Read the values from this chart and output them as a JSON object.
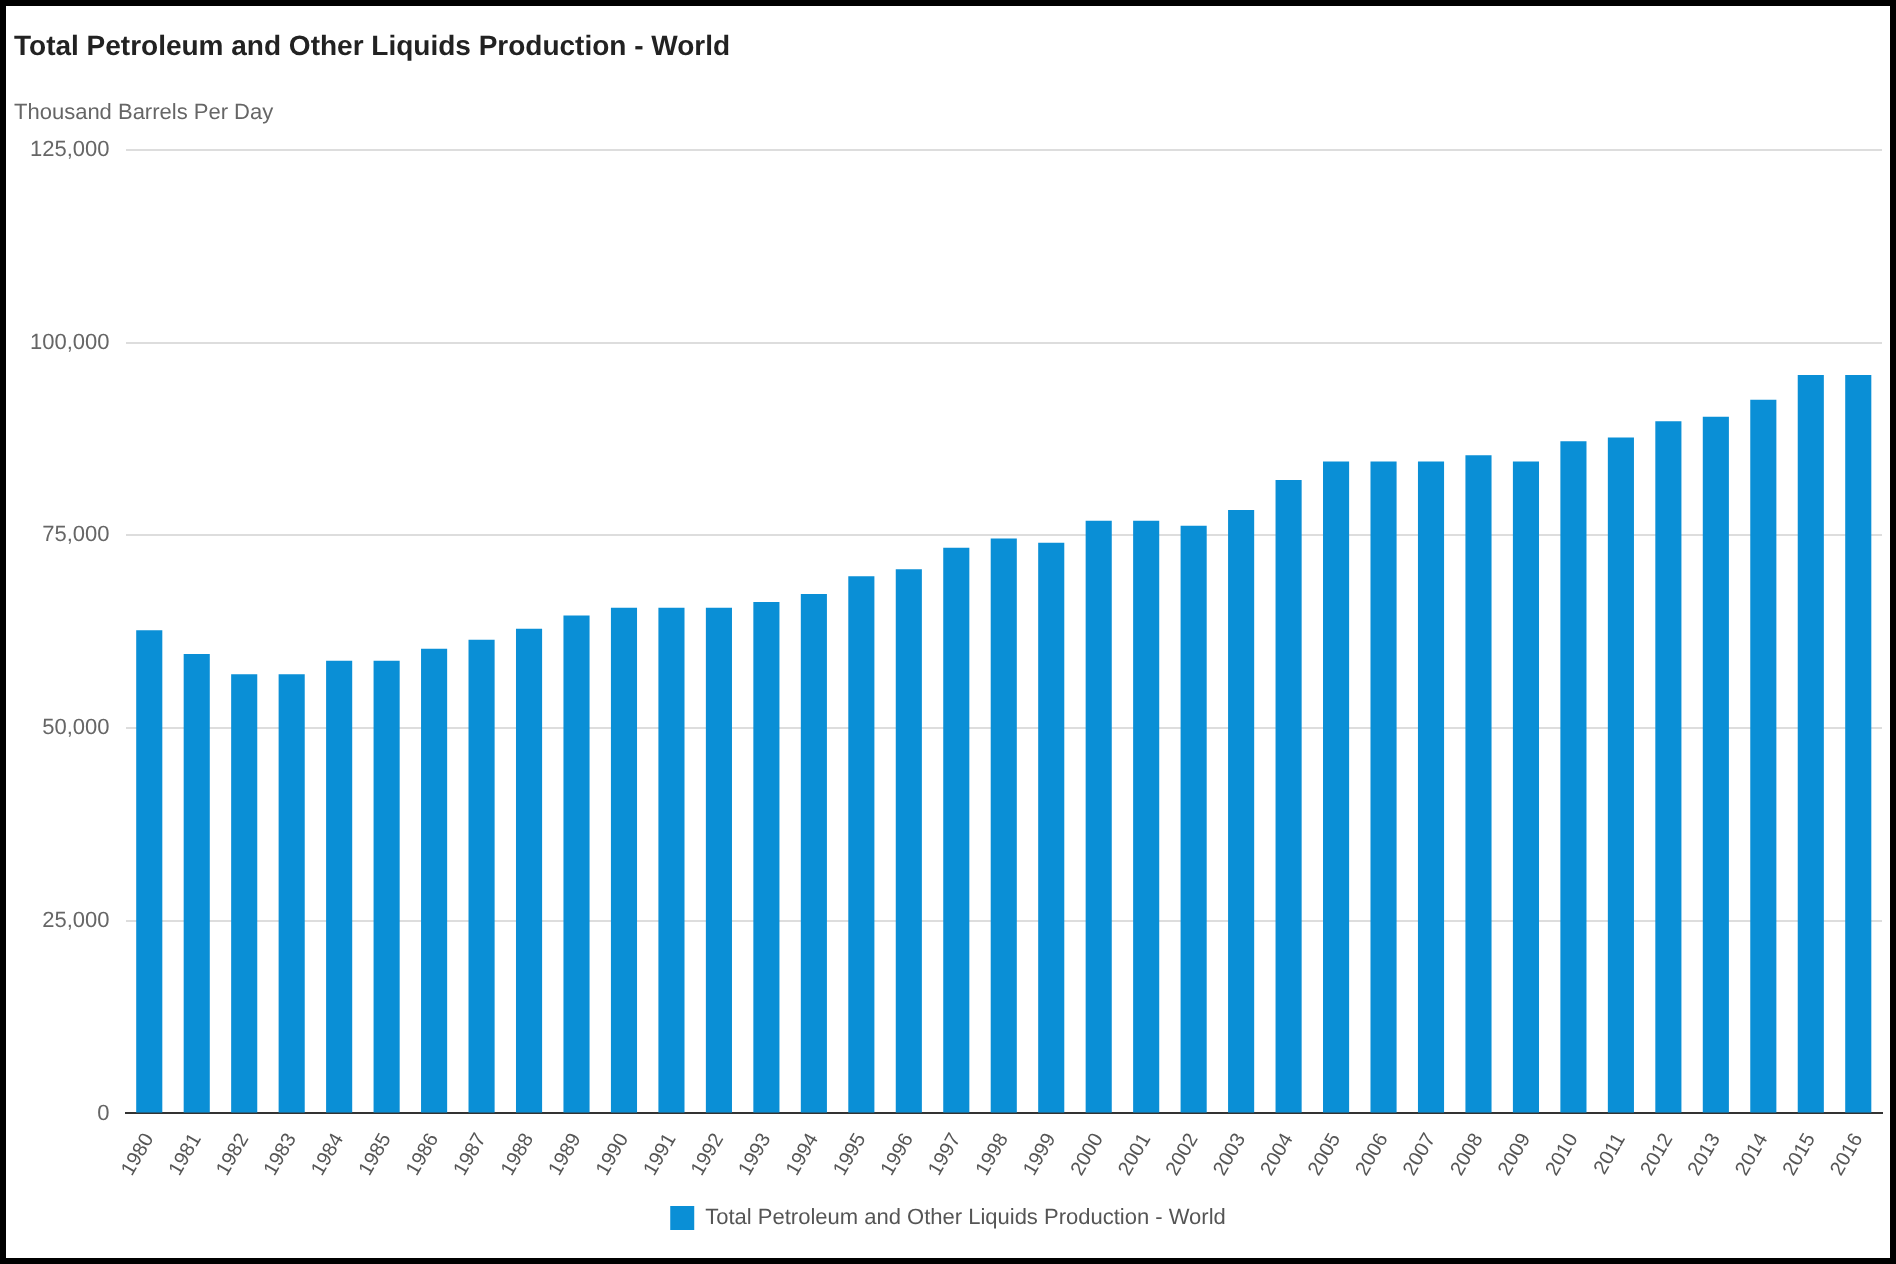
{
  "chart_data": {
    "type": "bar",
    "title": "Total Petroleum and Other Liquids Production - World",
    "ylabel": "Thousand Barrels Per Day",
    "categories": [
      "1980",
      "1981",
      "1982",
      "1983",
      "1984",
      "1985",
      "1986",
      "1987",
      "1988",
      "1989",
      "1990",
      "1991",
      "1992",
      "1993",
      "1994",
      "1995",
      "1996",
      "1997",
      "1998",
      "1999",
      "2000",
      "2001",
      "2002",
      "2003",
      "2004",
      "2005",
      "2006",
      "2007",
      "2008",
      "2009",
      "2010",
      "2011",
      "2012",
      "2013",
      "2014",
      "2015",
      "2016"
    ],
    "series": [
      {
        "name": "Total Petroleum and Other Liquids Production - World",
        "color": "#0a8fd6",
        "values": [
          62700,
          59600,
          57000,
          57000,
          58750,
          58750,
          60300,
          61450,
          62900,
          64600,
          65600,
          65600,
          65600,
          66350,
          67400,
          69700,
          70600,
          73400,
          74600,
          74050,
          76900,
          76900,
          76250,
          78300,
          82200,
          84600,
          84600,
          84600,
          85400,
          84600,
          87200,
          87700,
          89800,
          90400,
          92600,
          95800,
          95800
        ]
      }
    ],
    "ylim": [
      0,
      125000
    ],
    "yticks": [
      {
        "value": 0,
        "label": "0"
      },
      {
        "value": 25000,
        "label": "25,000"
      },
      {
        "value": 50000,
        "label": "50,000"
      },
      {
        "value": 75000,
        "label": "75,000"
      },
      {
        "value": 100000,
        "label": "100,000"
      },
      {
        "value": 125000,
        "label": "125,000"
      }
    ],
    "grid": "y",
    "legend": "bottom"
  }
}
